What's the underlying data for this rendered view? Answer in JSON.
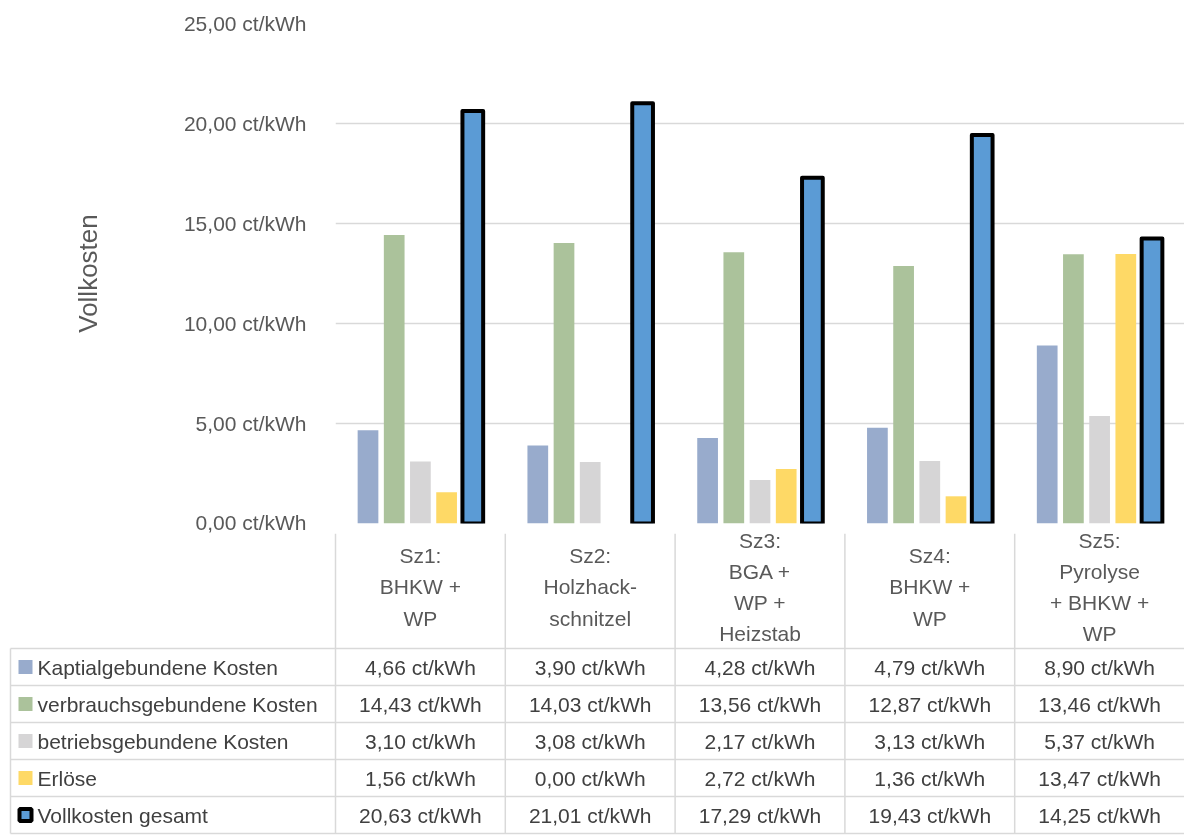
{
  "chart_data": {
    "type": "bar",
    "ylabel": "Vollkosten",
    "categories": [
      "Sz1:\nBHKW +\nWP",
      "Sz2:\nHolzhack-\nschnitzel",
      "Sz3:\nBGA +\nWP +\nHeizstab",
      "Sz4:\nBHKW +\nWP",
      "Sz5:\nPyrolyse\n+ BHKW +\nWP"
    ],
    "series": [
      {
        "name": "Kaptialgebundene Kosten",
        "color": "#98abcc",
        "values": [
          4.66,
          3.9,
          4.28,
          4.79,
          8.9
        ],
        "value_labels": [
          "4,66 ct/kWh",
          "3,90 ct/kWh",
          "4,28 ct/kWh",
          "4,79 ct/kWh",
          "8,90 ct/kWh"
        ]
      },
      {
        "name": "verbrauchsgebundene Kosten",
        "color": "#abc29b",
        "values": [
          14.43,
          14.03,
          13.56,
          12.87,
          13.46
        ],
        "value_labels": [
          "14,43 ct/kWh",
          "14,03 ct/kWh",
          "13,56 ct/kWh",
          "12,87 ct/kWh",
          "13,46 ct/kWh"
        ]
      },
      {
        "name": "betriebsgebundene Kosten",
        "color": "#d6d5d6",
        "values": [
          3.1,
          3.08,
          2.17,
          3.13,
          5.37
        ],
        "value_labels": [
          "3,10 ct/kWh",
          "3,08 ct/kWh",
          "2,17 ct/kWh",
          "3,13 ct/kWh",
          "5,37 ct/kWh"
        ]
      },
      {
        "name": "Erlöse",
        "color": "#fed966",
        "values": [
          1.56,
          0.0,
          2.72,
          1.36,
          13.47
        ],
        "value_labels": [
          "1,56 ct/kWh",
          "0,00 ct/kWh",
          "2,72 ct/kWh",
          "1,36 ct/kWh",
          "13,47 ct/kWh"
        ]
      },
      {
        "name": "Vollkosten gesamt",
        "color": "#5b9bd5",
        "values": [
          20.63,
          21.01,
          17.29,
          19.43,
          14.25
        ],
        "value_labels": [
          "20,63 ct/kWh",
          "21,01 ct/kWh",
          "17,29 ct/kWh",
          "19,43 ct/kWh",
          "14,25 ct/kWh"
        ]
      }
    ],
    "ylim": [
      0,
      25
    ],
    "yticks": [
      {
        "value": 0,
        "label": "0,00 ct/kWh"
      },
      {
        "value": 5,
        "label": "5,00 ct/kWh"
      },
      {
        "value": 10,
        "label": "10,00 ct/kWh"
      },
      {
        "value": 15,
        "label": "15,00 ct/kWh"
      },
      {
        "value": 20,
        "label": "20,00 ct/kWh"
      },
      {
        "value": 25,
        "label": "25,00 ct/kWh"
      }
    ],
    "grid": "y",
    "legend": "bottom"
  }
}
